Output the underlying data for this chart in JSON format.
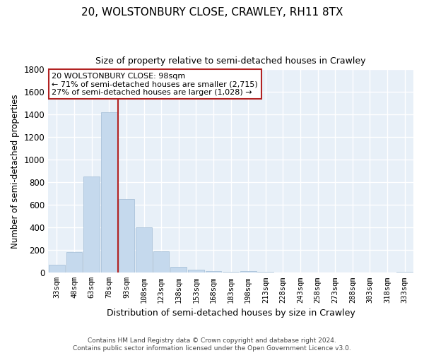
{
  "title": "20, WOLSTONBURY CLOSE, CRAWLEY, RH11 8TX",
  "subtitle": "Size of property relative to semi-detached houses in Crawley",
  "xlabel": "Distribution of semi-detached houses by size in Crawley",
  "ylabel": "Number of semi-detached properties",
  "bar_labels": [
    "33sqm",
    "48sqm",
    "63sqm",
    "78sqm",
    "93sqm",
    "108sqm",
    "123sqm",
    "138sqm",
    "153sqm",
    "168sqm",
    "183sqm",
    "198sqm",
    "213sqm",
    "228sqm",
    "243sqm",
    "258sqm",
    "273sqm",
    "288sqm",
    "303sqm",
    "318sqm",
    "333sqm"
  ],
  "bar_values": [
    70,
    185,
    850,
    1420,
    650,
    400,
    190,
    55,
    25,
    15,
    10,
    15,
    10,
    0,
    0,
    0,
    0,
    0,
    0,
    0,
    10
  ],
  "bar_color": "#c5d9ed",
  "bar_edge_color": "#a0bbd4",
  "vline_color": "#b22222",
  "annotation_title": "20 WOLSTONBURY CLOSE: 98sqm",
  "annotation_line1": "← 71% of semi-detached houses are smaller (2,715)",
  "annotation_line2": "27% of semi-detached houses are larger (1,028) →",
  "annotation_box_color": "#ffffff",
  "annotation_box_edge": "#b22222",
  "ylim": [
    0,
    1800
  ],
  "yticks": [
    0,
    200,
    400,
    600,
    800,
    1000,
    1200,
    1400,
    1600,
    1800
  ],
  "footer_line1": "Contains HM Land Registry data © Crown copyright and database right 2024.",
  "footer_line2": "Contains public sector information licensed under the Open Government Licence v3.0.",
  "background_color": "#ffffff",
  "plot_bg_color": "#e8f0f8",
  "grid_color": "#ffffff",
  "vline_x": 3.5
}
